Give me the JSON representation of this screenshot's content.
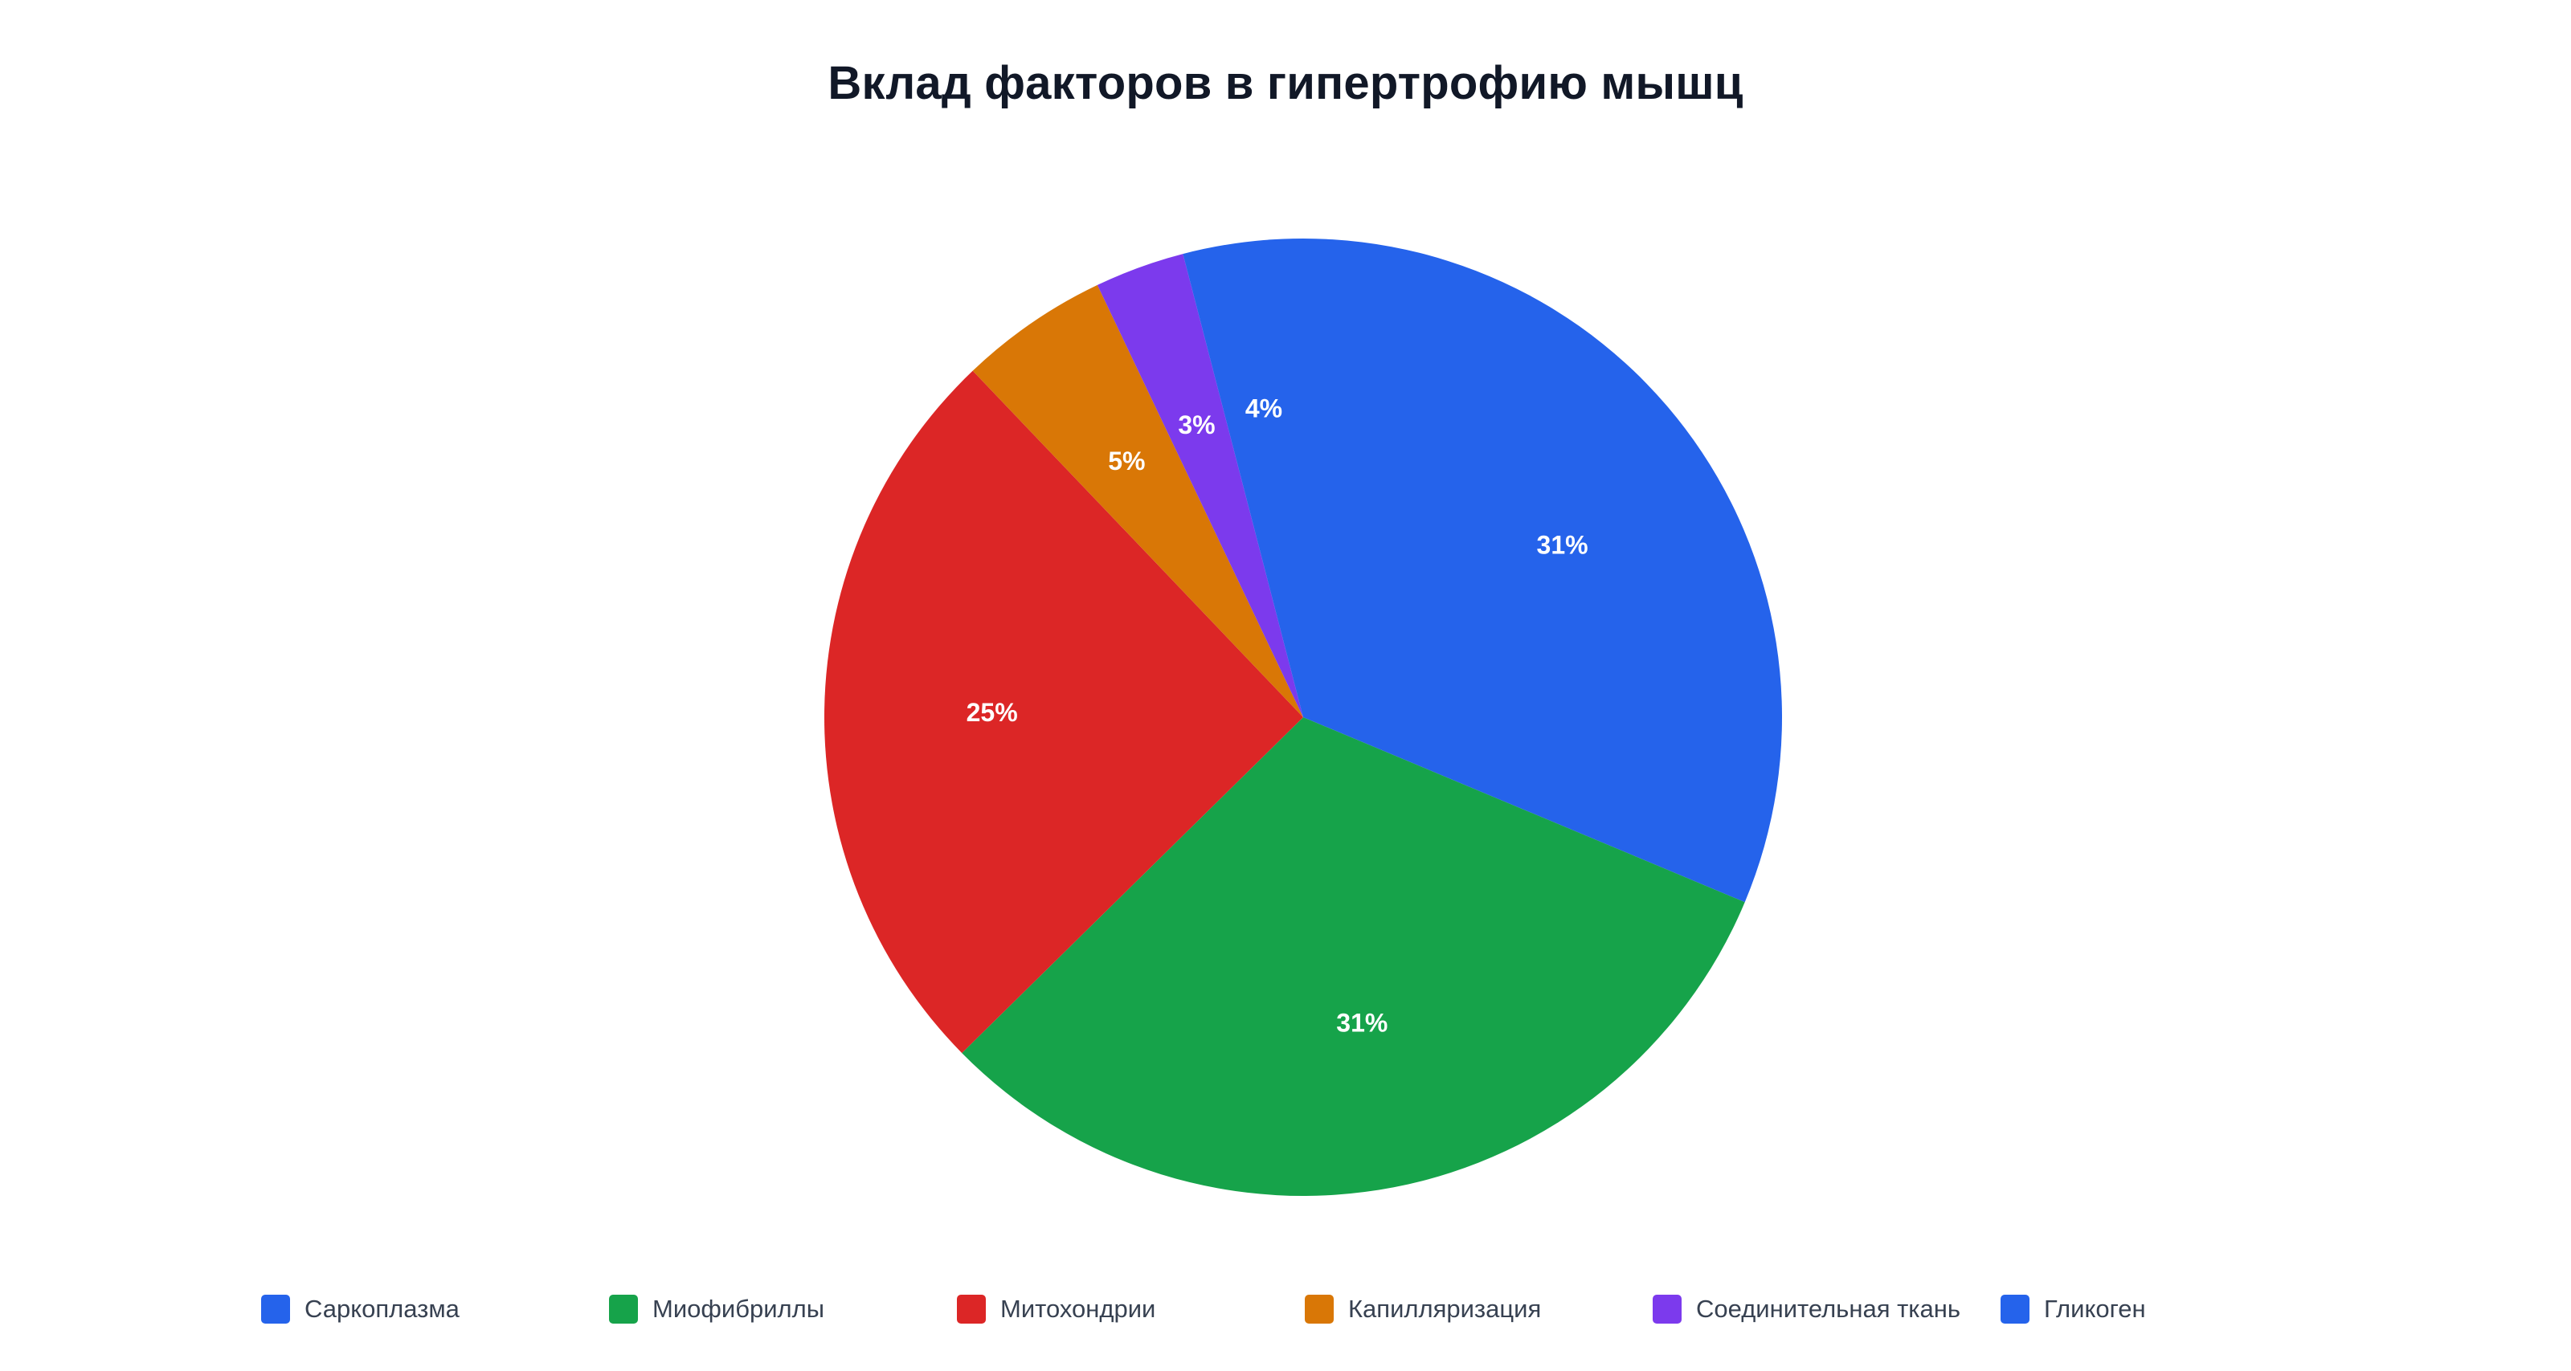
{
  "chart_data": {
    "type": "pie",
    "title": "Вклад факторов в гипертрофию мышц",
    "start_angle_deg": 0,
    "direction": "clockwise",
    "legend_position": "bottom",
    "slices": [
      {
        "label": "Гликоген",
        "value": 31,
        "display": "31%",
        "color": "#2563EB"
      },
      {
        "label": "Миофибриллы",
        "value": 31,
        "display": "31%",
        "color": "#16A34A"
      },
      {
        "label": "Митохондрии",
        "value": 25,
        "display": "25%",
        "color": "#DC2626"
      },
      {
        "label": "Капилляризация",
        "value": 5,
        "display": "5%",
        "color": "#D97706"
      },
      {
        "label": "Соединительная ткань",
        "value": 3,
        "display": "3%",
        "color": "#7C3AED"
      },
      {
        "label": "Саркоплазма",
        "value": 4,
        "display": "4%",
        "color": "#2563EB"
      }
    ],
    "legend": [
      {
        "label": "Саркоплазма",
        "color": "#2563EB"
      },
      {
        "label": "Миофибриллы",
        "color": "#16A34A"
      },
      {
        "label": "Митохондрии",
        "color": "#DC2626"
      },
      {
        "label": "Капилляризация",
        "color": "#D97706"
      },
      {
        "label": "Соединительная ткань",
        "color": "#7C3AED"
      },
      {
        "label": "Гликоген",
        "color": "#2563EB"
      }
    ]
  }
}
